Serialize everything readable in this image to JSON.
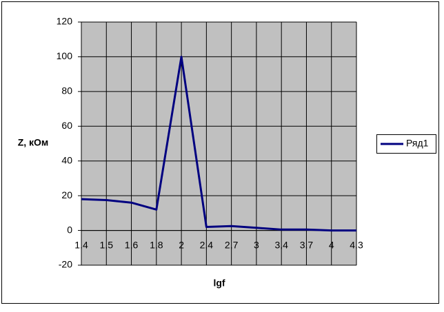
{
  "chart_data": {
    "type": "line",
    "x_label": "lgf",
    "y_label": "Z, кОм",
    "categories": [
      "1,4",
      "1,5",
      "1,6",
      "1,8",
      "2",
      "2,4",
      "2,7",
      "3",
      "3,4",
      "3,7",
      "4",
      "4,3"
    ],
    "series": [
      {
        "name": "Ряд1",
        "color": "#000080",
        "values": [
          18,
          17.5,
          16,
          12,
          100,
          2,
          2.5,
          1.5,
          0.5,
          0.5,
          0,
          0
        ]
      }
    ],
    "ylim": [
      -20,
      120
    ],
    "yticks": [
      -20,
      0,
      20,
      40,
      60,
      80,
      100,
      120
    ],
    "grid": true,
    "legend": "right"
  }
}
